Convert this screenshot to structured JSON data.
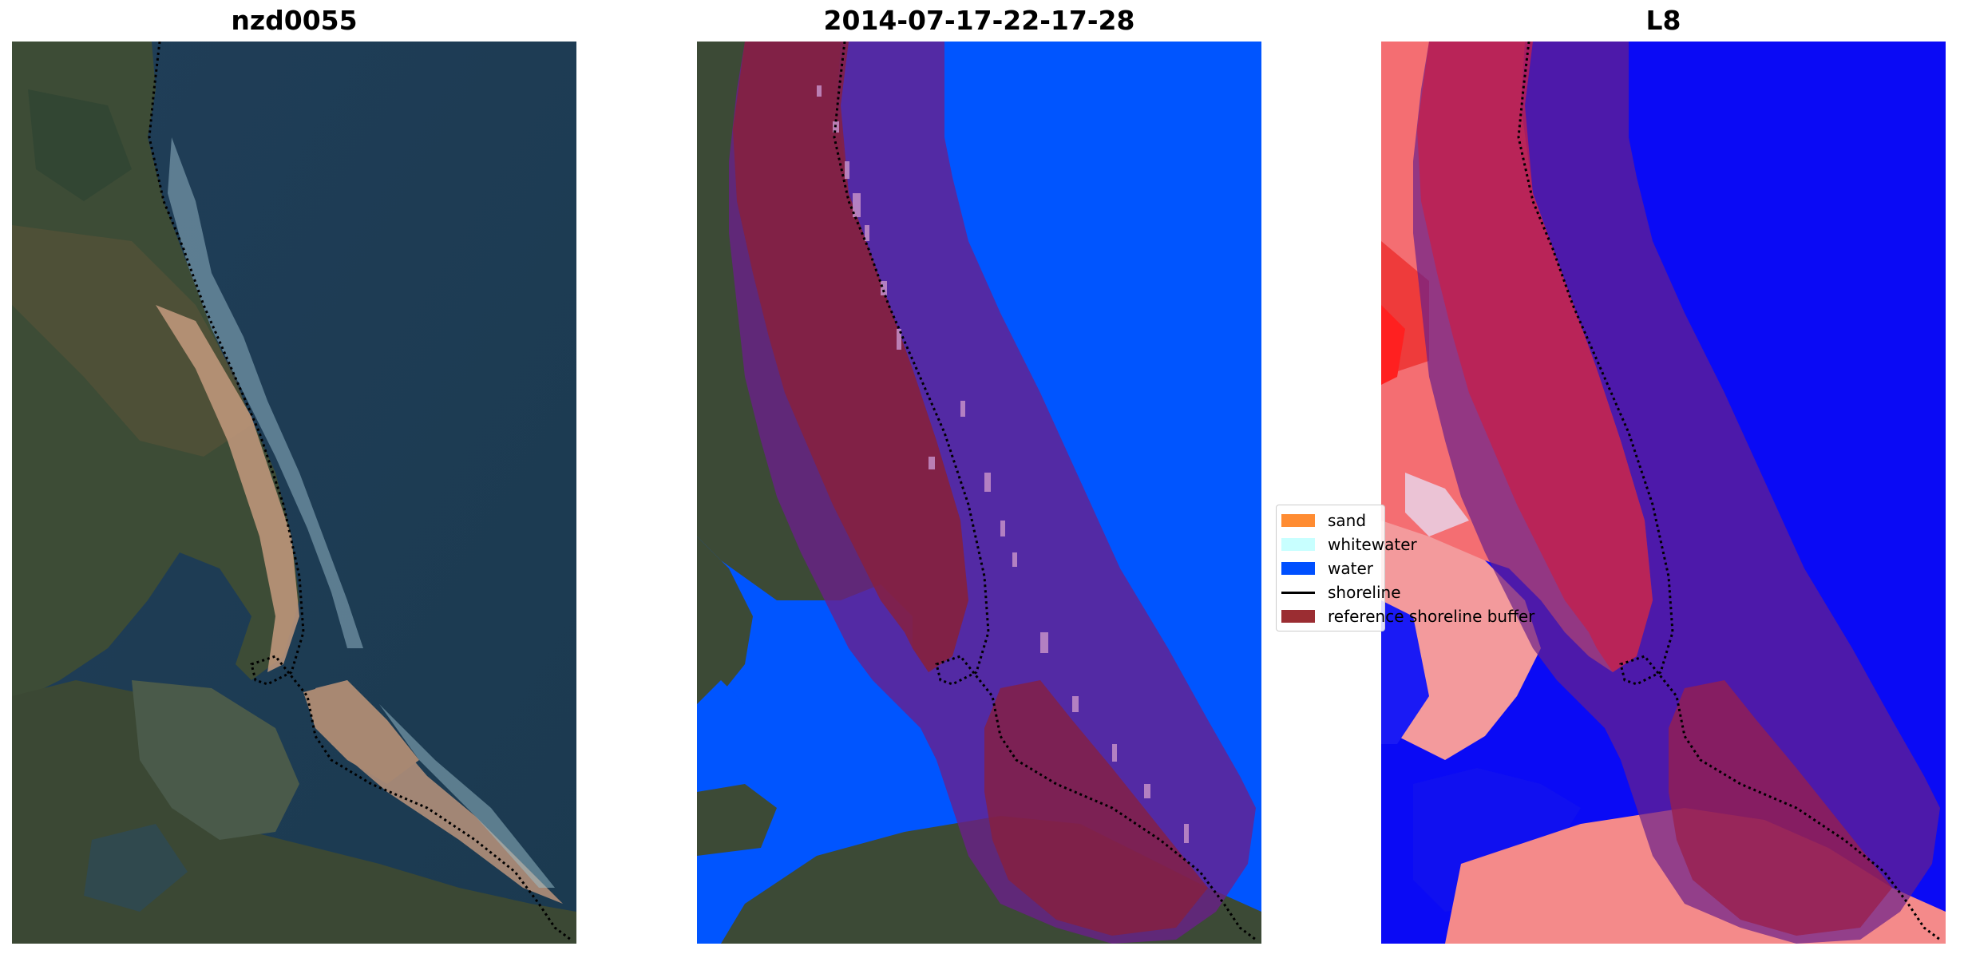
{
  "panels": [
    {
      "title": "nzd0055"
    },
    {
      "title": "2014-07-17-22-17-28"
    },
    {
      "title": "L8"
    }
  ],
  "legend": {
    "items": [
      {
        "label": "sand",
        "kind": "patch",
        "color": "#ff8c32"
      },
      {
        "label": "whitewater",
        "kind": "patch",
        "color": "#c8ffff"
      },
      {
        "label": "water",
        "kind": "patch",
        "color": "#0050ff"
      },
      {
        "label": "shoreline",
        "kind": "line",
        "color": "#000000"
      },
      {
        "label": "reference shoreline buffer",
        "kind": "patch",
        "color": "#9b2d32"
      }
    ]
  },
  "colors": {
    "ocean": "#1f3d56",
    "land_dark": "#3a4a36",
    "sand": "#c49a7e",
    "water_class": "#0055ff",
    "buffer": "#8a1f4a",
    "index_water": "#0000ff",
    "index_land": "#ff5a5a"
  }
}
